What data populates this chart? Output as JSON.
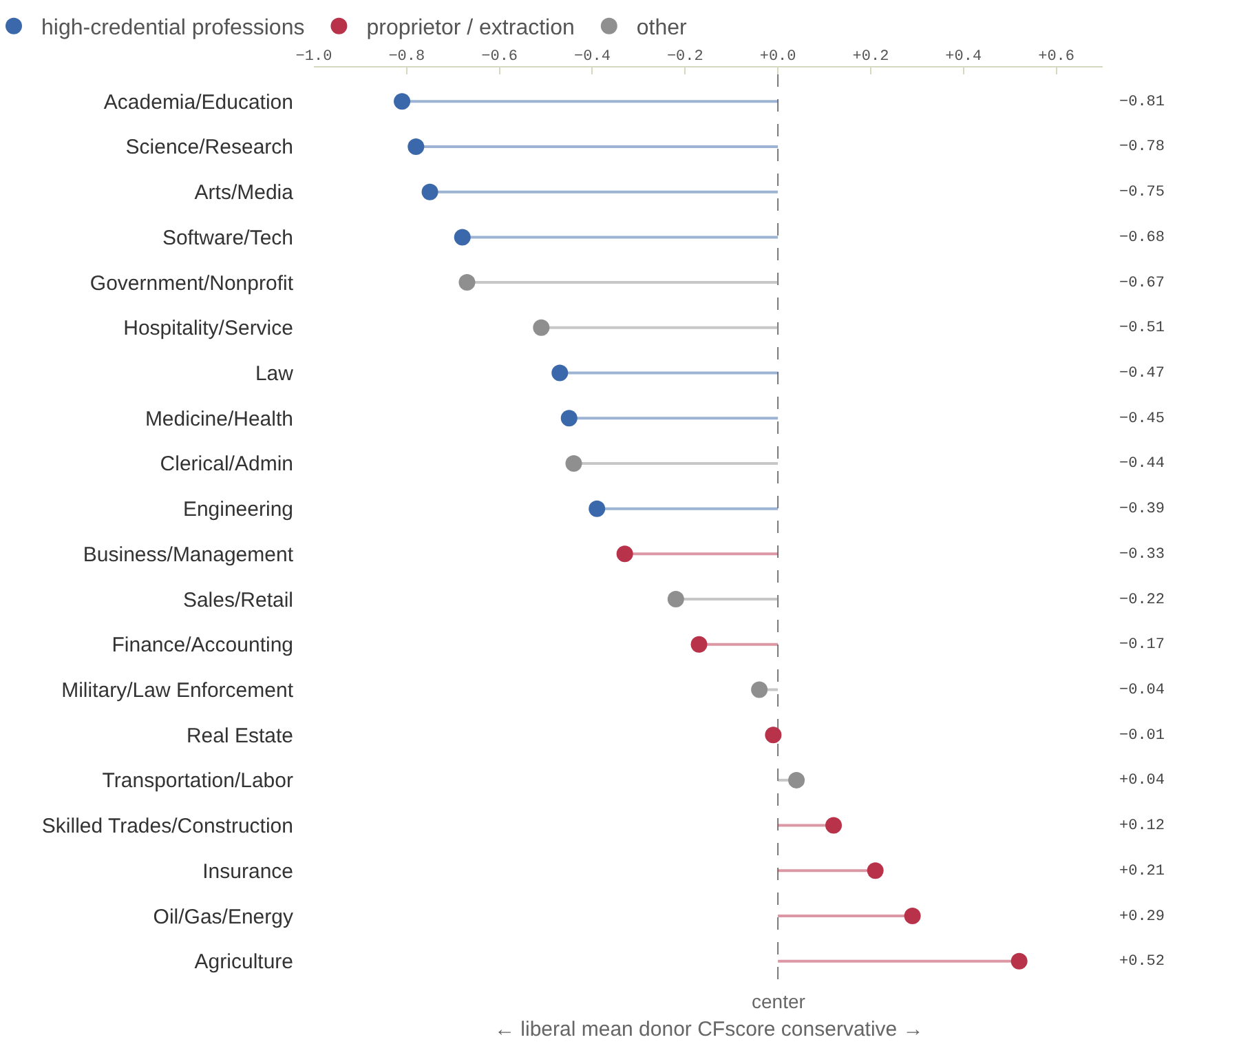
{
  "chart_data": {
    "type": "lollipop",
    "orientation": "horizontal",
    "xlabel": "← liberal mean donor CFscore conservative →",
    "categories": [
      "Academia/Education",
      "Science/Research",
      "Arts/Media",
      "Software/Tech",
      "Government/Nonprofit",
      "Hospitality/Service",
      "Law",
      "Medicine/Health",
      "Clerical/Admin",
      "Engineering",
      "Business/Management",
      "Sales/Retail",
      "Finance/Accounting",
      "Military/Law Enforcement",
      "Real Estate",
      "Transportation/Labor",
      "Skilled Trades/Construction",
      "Insurance",
      "Oil/Gas/Energy",
      "Agriculture"
    ],
    "series": [
      {
        "name": "high-credential professions",
        "color": "#3a68aa",
        "values": [
          -0.81,
          -0.78,
          -0.75,
          -0.68,
          null,
          null,
          -0.47,
          -0.45,
          null,
          -0.39,
          null,
          null,
          null,
          null,
          null,
          null,
          null,
          null,
          null,
          null
        ]
      },
      {
        "name": "proprietor / extraction",
        "color": "#b8324a",
        "values": [
          null,
          null,
          null,
          null,
          null,
          null,
          null,
          null,
          null,
          null,
          -0.33,
          null,
          -0.17,
          null,
          -0.01,
          null,
          0.12,
          0.21,
          0.29,
          0.52
        ]
      },
      {
        "name": "other",
        "color": "#8f8f8f",
        "values": [
          null,
          null,
          null,
          null,
          -0.67,
          -0.51,
          null,
          null,
          -0.44,
          null,
          null,
          -0.22,
          null,
          -0.04,
          null,
          0.04,
          null,
          null,
          null,
          null
        ]
      }
    ],
    "value_labels": [
      "−0.81",
      "−0.78",
      "−0.75",
      "−0.68",
      "−0.67",
      "−0.51",
      "−0.47",
      "−0.45",
      "−0.44",
      "−0.39",
      "−0.33",
      "−0.22",
      "−0.17",
      "−0.04",
      "−0.01",
      "+0.04",
      "+0.12",
      "+0.21",
      "+0.29",
      "+0.52"
    ],
    "xlim": [
      -1.0,
      0.7
    ],
    "xticks": [
      {
        "value": -1.0,
        "label": "−1.0"
      },
      {
        "value": -0.8,
        "label": "−0.8"
      },
      {
        "value": -0.6,
        "label": "−0.6"
      },
      {
        "value": -0.4,
        "label": "−0.4"
      },
      {
        "value": -0.2,
        "label": "−0.2"
      },
      {
        "value": 0,
        "label": "+0.0"
      },
      {
        "value": 0.2,
        "label": "+0.2"
      },
      {
        "value": 0.4,
        "label": "+0.4"
      },
      {
        "value": 0.6,
        "label": "+0.6"
      }
    ],
    "ref_lines": [
      {
        "axis": "x",
        "value": 0,
        "label": "center",
        "color": "#777777",
        "line_style": "dashed"
      }
    ],
    "legend": "top left",
    "marker": "circle",
    "line_style": "solid"
  }
}
